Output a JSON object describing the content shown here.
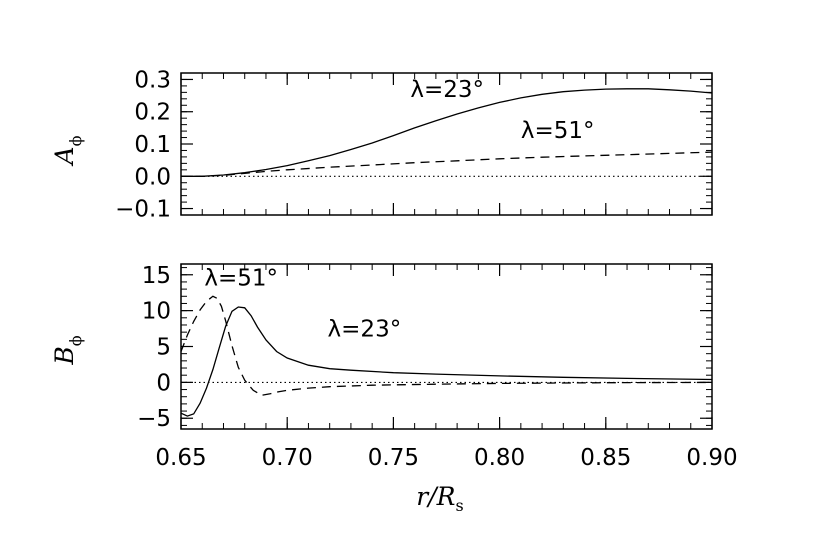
{
  "chart_data": [
    {
      "type": "line",
      "ylabel": "A",
      "ylabel_sub": "ϕ",
      "xlim": [
        0.65,
        0.9
      ],
      "ylim": [
        -0.12,
        0.32
      ],
      "y_ticks": [
        -0.1,
        0.0,
        0.1,
        0.2,
        0.3
      ],
      "y_tick_labels": [
        "−0.1",
        "0.0",
        "0.1",
        "0.2",
        "0.3"
      ],
      "grid": false,
      "series": [
        {
          "name": "λ=23°",
          "style": "solid",
          "x": [
            0.65,
            0.66,
            0.67,
            0.68,
            0.69,
            0.7,
            0.71,
            0.72,
            0.73,
            0.74,
            0.75,
            0.76,
            0.77,
            0.78,
            0.79,
            0.8,
            0.81,
            0.82,
            0.83,
            0.84,
            0.85,
            0.86,
            0.87,
            0.88,
            0.89,
            0.9
          ],
          "y": [
            0.0,
            0.0,
            0.004,
            0.011,
            0.021,
            0.033,
            0.048,
            0.064,
            0.083,
            0.103,
            0.126,
            0.15,
            0.172,
            0.193,
            0.212,
            0.229,
            0.243,
            0.254,
            0.262,
            0.267,
            0.27,
            0.271,
            0.271,
            0.268,
            0.264,
            0.258
          ]
        },
        {
          "name": "λ=51°",
          "style": "dashed",
          "x": [
            0.65,
            0.66,
            0.67,
            0.68,
            0.69,
            0.7,
            0.72,
            0.74,
            0.76,
            0.78,
            0.8,
            0.82,
            0.84,
            0.86,
            0.88,
            0.9
          ],
          "y": [
            0.0,
            0.0,
            0.003,
            0.009,
            0.015,
            0.02,
            0.028,
            0.035,
            0.042,
            0.048,
            0.054,
            0.059,
            0.063,
            0.067,
            0.071,
            0.075
          ]
        },
        {
          "name": "zero",
          "style": "dotted",
          "x": [
            0.65,
            0.9
          ],
          "y": [
            0.0,
            0.0
          ]
        }
      ],
      "annotations": [
        {
          "text": "λ=23°",
          "x": 0.758,
          "y": 0.245
        },
        {
          "text": "λ=51°",
          "x": 0.81,
          "y": 0.118
        }
      ]
    },
    {
      "type": "line",
      "ylabel": "B",
      "ylabel_sub": "ϕ",
      "xlabel_main": "r/R",
      "xlabel_sub": "s",
      "xlim": [
        0.65,
        0.9
      ],
      "ylim": [
        -6.5,
        16.5
      ],
      "x_ticks": [
        0.65,
        0.7,
        0.75,
        0.8,
        0.85,
        0.9
      ],
      "x_tick_labels": [
        "0.65",
        "0.70",
        "0.75",
        "0.80",
        "0.85",
        "0.90"
      ],
      "y_ticks": [
        -5,
        0,
        5,
        10,
        15
      ],
      "y_tick_labels": [
        "−5",
        "0",
        "5",
        "10",
        "15"
      ],
      "grid": false,
      "series": [
        {
          "name": "λ=23°",
          "style": "solid",
          "x": [
            0.65,
            0.653,
            0.656,
            0.659,
            0.662,
            0.665,
            0.668,
            0.671,
            0.674,
            0.677,
            0.68,
            0.683,
            0.686,
            0.69,
            0.695,
            0.7,
            0.71,
            0.72,
            0.73,
            0.75,
            0.77,
            0.8,
            0.83,
            0.86,
            0.9
          ],
          "y": [
            -4.3,
            -4.7,
            -4.4,
            -2.9,
            -0.8,
            1.8,
            4.8,
            7.8,
            9.9,
            10.5,
            10.4,
            9.3,
            7.7,
            5.9,
            4.3,
            3.4,
            2.4,
            1.9,
            1.7,
            1.35,
            1.15,
            0.9,
            0.7,
            0.55,
            0.4
          ]
        },
        {
          "name": "λ=51°",
          "style": "dashed",
          "x": [
            0.65,
            0.653,
            0.656,
            0.659,
            0.662,
            0.665,
            0.667,
            0.669,
            0.671,
            0.674,
            0.677,
            0.68,
            0.684,
            0.688,
            0.692,
            0.696,
            0.7,
            0.71,
            0.72,
            0.74,
            0.77,
            0.8,
            0.85,
            0.9
          ],
          "y": [
            4.3,
            6.6,
            8.5,
            10.1,
            11.3,
            12.0,
            11.7,
            10.6,
            8.6,
            5.1,
            2.1,
            0.3,
            -1.1,
            -1.8,
            -1.6,
            -1.3,
            -1.1,
            -0.8,
            -0.6,
            -0.4,
            -0.25,
            -0.15,
            -0.05,
            0.0
          ]
        },
        {
          "name": "zero",
          "style": "dotted",
          "x": [
            0.65,
            0.9
          ],
          "y": [
            0.0,
            0.0
          ]
        }
      ],
      "annotations": [
        {
          "text": "λ=51°",
          "x": 0.661,
          "y": 13.5
        },
        {
          "text": "λ=23°",
          "x": 0.719,
          "y": 6.4
        }
      ]
    }
  ]
}
